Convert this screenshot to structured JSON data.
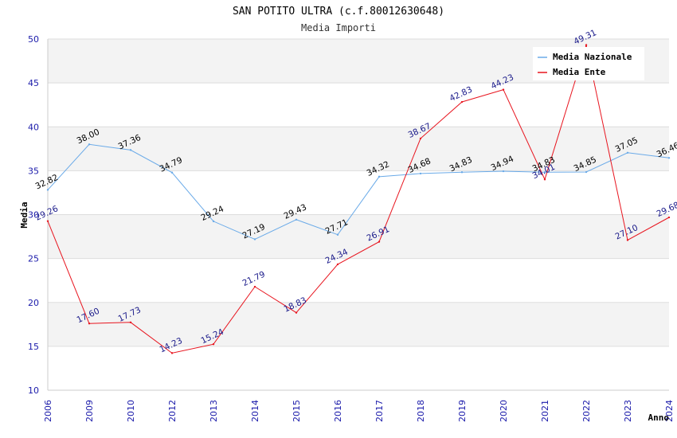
{
  "chart_data": {
    "type": "line",
    "title": "SAN POTITO ULTRA (c.f.80012630648)",
    "subtitle": "Media Importi",
    "xlabel": "Anno",
    "ylabel": "Media",
    "ylim": [
      10,
      50
    ],
    "yticks": [
      10,
      15,
      20,
      25,
      30,
      35,
      40,
      45,
      50
    ],
    "categories": [
      "2006",
      "2009",
      "2010",
      "2012",
      "2013",
      "2014",
      "2015",
      "2016",
      "2017",
      "2018",
      "2019",
      "2020",
      "2021",
      "2022",
      "2023",
      "2024"
    ],
    "series": [
      {
        "name": "Media Nazionale",
        "color": "#6aaae8",
        "values": [
          32.82,
          38.0,
          37.36,
          34.79,
          29.24,
          27.19,
          29.43,
          27.71,
          34.32,
          34.68,
          34.83,
          34.94,
          34.83,
          34.85,
          37.05,
          36.46
        ],
        "labels": [
          "32.82",
          "38.00",
          "37.36",
          "34.79",
          "29.24",
          "27.19",
          "29.43",
          "27.71",
          "34.32",
          "34.68",
          "34.83",
          "34.94",
          "34.83",
          "34.85",
          "37.05",
          "36.46"
        ]
      },
      {
        "name": "Media Ente",
        "color": "#e8141e",
        "values": [
          29.26,
          17.6,
          17.73,
          14.23,
          15.24,
          21.79,
          18.83,
          24.34,
          26.91,
          38.67,
          42.83,
          44.23,
          34.01,
          49.31,
          27.1,
          29.68
        ],
        "labels": [
          "29.26",
          "17.60",
          "17.73",
          "14.23",
          "15.24",
          "21.79",
          "18.83",
          "24.34",
          "26.91",
          "38.67",
          "42.83",
          "44.23",
          "34.01",
          "49.31",
          "27.10",
          "29.68"
        ]
      }
    ],
    "grid": true,
    "legend": "top-right"
  }
}
